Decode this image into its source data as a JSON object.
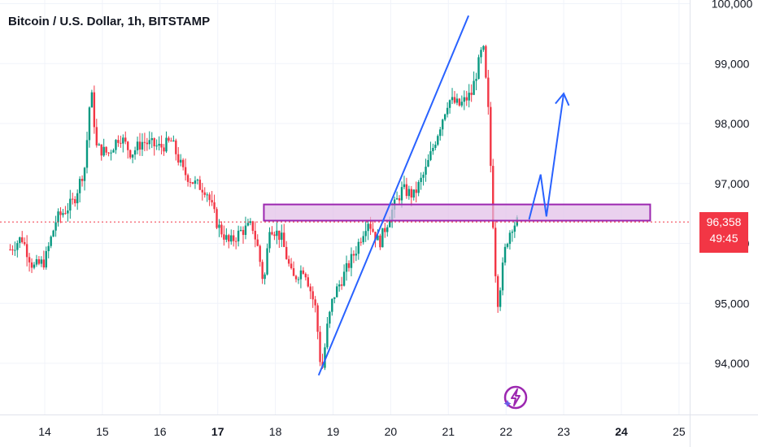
{
  "chart_data": {
    "type": "candlestick",
    "title": "Bitcoin / U.S. Dollar, 1h, BITSTAMP",
    "x_ticks": [
      "14",
      "15",
      "16",
      "17",
      "18",
      "19",
      "20",
      "21",
      "22",
      "23",
      "24",
      "25"
    ],
    "y_ticks": [
      "94,000",
      "95,000",
      "96,000",
      "97,000",
      "98,000",
      "99,000",
      "100,000"
    ],
    "y_tick_values": [
      94000,
      95000,
      96000,
      97000,
      98000,
      99000,
      100000
    ],
    "ylim": [
      93200,
      100100
    ],
    "xlim": [
      13.4,
      25.4
    ],
    "last_price": "96,358",
    "last_price_value": 96358,
    "countdown": "49:45",
    "grid": true,
    "colors": {
      "up": "#089981",
      "down": "#f23645",
      "drawing": "#2962ff",
      "zone": "#9c27b0",
      "zone_fill": "#e1bee7"
    },
    "price_path": [
      [
        13.4,
        95900
      ],
      [
        13.6,
        96100
      ],
      [
        13.8,
        95600
      ],
      [
        14.0,
        95700
      ],
      [
        14.2,
        96400
      ],
      [
        14.5,
        96700
      ],
      [
        14.7,
        97300
      ],
      [
        14.8,
        98600
      ],
      [
        14.9,
        97600
      ],
      [
        15.1,
        97500
      ],
      [
        15.3,
        97800
      ],
      [
        15.5,
        97500
      ],
      [
        15.7,
        97700
      ],
      [
        16.0,
        97600
      ],
      [
        16.2,
        97700
      ],
      [
        16.4,
        97200
      ],
      [
        16.6,
        97000
      ],
      [
        16.8,
        96900
      ],
      [
        17.0,
        96300
      ],
      [
        17.2,
        96000
      ],
      [
        17.4,
        96200
      ],
      [
        17.6,
        96300
      ],
      [
        17.7,
        95900
      ],
      [
        17.8,
        95300
      ],
      [
        17.9,
        96300
      ],
      [
        18.1,
        96100
      ],
      [
        18.3,
        95400
      ],
      [
        18.5,
        95600
      ],
      [
        18.7,
        94900
      ],
      [
        18.8,
        93800
      ],
      [
        18.9,
        94600
      ],
      [
        19.0,
        95100
      ],
      [
        19.2,
        95500
      ],
      [
        19.4,
        95900
      ],
      [
        19.6,
        96400
      ],
      [
        19.8,
        96000
      ],
      [
        20.0,
        96500
      ],
      [
        20.2,
        96900
      ],
      [
        20.4,
        96800
      ],
      [
        20.6,
        97200
      ],
      [
        20.8,
        97800
      ],
      [
        21.0,
        98400
      ],
      [
        21.2,
        98300
      ],
      [
        21.4,
        98500
      ],
      [
        21.5,
        98900
      ],
      [
        21.6,
        99300
      ],
      [
        21.7,
        98100
      ],
      [
        21.75,
        96900
      ],
      [
        21.8,
        95800
      ],
      [
        21.85,
        95000
      ],
      [
        21.9,
        95300
      ],
      [
        22.0,
        96000
      ],
      [
        22.1,
        96300
      ],
      [
        22.2,
        96358
      ]
    ],
    "trendline": {
      "start": [
        18.75,
        93800
      ],
      "end": [
        21.35,
        99800
      ]
    },
    "zone": {
      "x0": 17.8,
      "x1": 24.5,
      "y0": 96380,
      "y1": 96650
    },
    "projection": [
      [
        22.4,
        96400
      ],
      [
        22.6,
        97150
      ],
      [
        22.7,
        96450
      ],
      [
        23.0,
        98500
      ]
    ]
  }
}
